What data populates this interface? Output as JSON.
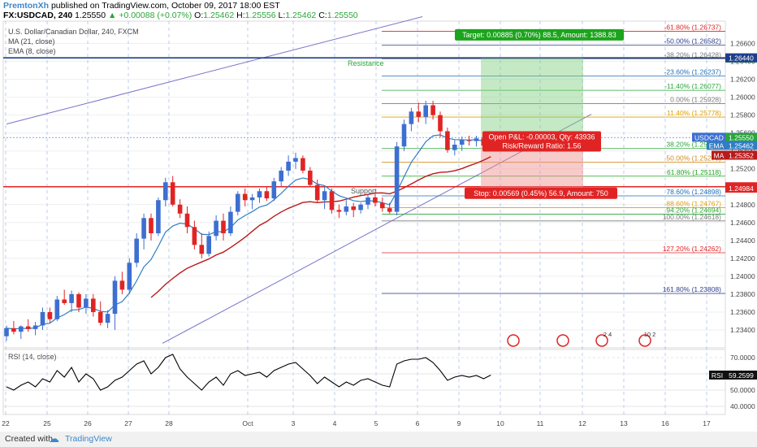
{
  "header": {
    "author": "PremtonXh",
    "published": "published on TradingView.com, October 09, 2017 18:00 EST",
    "symbol_interval": "FX:USDCAD, 240",
    "last": "1.25550",
    "change": "+0.00088 (+0.07%)",
    "ohlc": {
      "o_label": "O:",
      "o": "1.25462",
      "h_label": "H:",
      "h": "1.25556",
      "l_label": "L:",
      "l": "1.25462",
      "c_label": "C:",
      "c": "1.25550"
    }
  },
  "legend": [
    "U.S. Dollar/Canadian Dollar, 240, FXCM",
    "MA (21, close)",
    "EMA (8, close)"
  ],
  "footer": {
    "created_with": "Created with",
    "brand": "TradingView"
  },
  "colors": {
    "bull": "#3d6fd1",
    "bear": "#e02424",
    "ma": "#b91919",
    "ema": "#2f7ec4",
    "channel": "#7774c8",
    "resistance": "#1f3f8c",
    "support": "#e02424",
    "target": "#1ca41c",
    "stop": "#e02424",
    "rsi": "#000000"
  },
  "chart_data": {
    "type": "candlestick",
    "ylim": [
      1.232,
      1.2685
    ],
    "price_ticks": [
      "1.26600",
      "1.26400",
      "1.26200",
      "1.26000",
      "1.25800",
      "1.25600",
      "1.25400",
      "1.25200",
      "1.25000",
      "1.24800",
      "1.24600",
      "1.24400",
      "1.24200",
      "1.24000",
      "1.23800",
      "1.23600",
      "1.23400"
    ],
    "x_axis": [
      "22",
      "25",
      "26",
      "27",
      "28",
      "Oct",
      "3",
      "4",
      "5",
      "6",
      "9",
      "10",
      "11",
      "12",
      "13",
      "16",
      "17"
    ],
    "ohlc": [
      [
        1.2333,
        1.2345,
        1.2328,
        1.2342
      ],
      [
        1.2342,
        1.235,
        1.2335,
        1.2338
      ],
      [
        1.2338,
        1.2345,
        1.233,
        1.2344
      ],
      [
        1.2344,
        1.2352,
        1.2338,
        1.2341
      ],
      [
        1.2341,
        1.2349,
        1.2334,
        1.2345
      ],
      [
        1.2345,
        1.2365,
        1.234,
        1.236
      ],
      [
        1.236,
        1.2365,
        1.2348,
        1.2352
      ],
      [
        1.2352,
        1.2378,
        1.235,
        1.2374
      ],
      [
        1.2374,
        1.2385,
        1.2368,
        1.237
      ],
      [
        1.237,
        1.2384,
        1.236,
        1.238
      ],
      [
        1.238,
        1.2382,
        1.236,
        1.2365
      ],
      [
        1.2365,
        1.238,
        1.2358,
        1.2375
      ],
      [
        1.2375,
        1.238,
        1.2355,
        1.236
      ],
      [
        1.236,
        1.2372,
        1.2345,
        1.2348
      ],
      [
        1.2348,
        1.2362,
        1.2342,
        1.2358
      ],
      [
        1.2358,
        1.24,
        1.234,
        1.2395
      ],
      [
        1.2395,
        1.2405,
        1.238,
        1.2385
      ],
      [
        1.2385,
        1.242,
        1.238,
        1.2415
      ],
      [
        1.2415,
        1.2448,
        1.241,
        1.2442
      ],
      [
        1.2442,
        1.247,
        1.243,
        1.2465
      ],
      [
        1.2465,
        1.247,
        1.244,
        1.2448
      ],
      [
        1.2448,
        1.2488,
        1.2445,
        1.2485
      ],
      [
        1.2485,
        1.251,
        1.2478,
        1.2505
      ],
      [
        1.2505,
        1.2512,
        1.2478,
        1.248
      ],
      [
        1.248,
        1.2486,
        1.2465,
        1.247
      ],
      [
        1.247,
        1.2478,
        1.2448,
        1.2455
      ],
      [
        1.2455,
        1.2462,
        1.243,
        1.2435
      ],
      [
        1.2435,
        1.2448,
        1.242,
        1.2425
      ],
      [
        1.2425,
        1.245,
        1.2422,
        1.2445
      ],
      [
        1.2445,
        1.2468,
        1.244,
        1.2462
      ],
      [
        1.2462,
        1.247,
        1.244,
        1.2448
      ],
      [
        1.2448,
        1.2478,
        1.2445,
        1.2472
      ],
      [
        1.2472,
        1.2495,
        1.2468,
        1.2492
      ],
      [
        1.2492,
        1.2498,
        1.2478,
        1.2485
      ],
      [
        1.2485,
        1.2492,
        1.2475,
        1.2488
      ],
      [
        1.2488,
        1.2498,
        1.2482,
        1.2495
      ],
      [
        1.2495,
        1.25,
        1.2484,
        1.2487
      ],
      [
        1.2487,
        1.251,
        1.2484,
        1.2506
      ],
      [
        1.2506,
        1.2522,
        1.25,
        1.2518
      ],
      [
        1.2518,
        1.2535,
        1.2512,
        1.2528
      ],
      [
        1.2528,
        1.2538,
        1.252,
        1.2532
      ],
      [
        1.2532,
        1.2535,
        1.2515,
        1.2518
      ],
      [
        1.2518,
        1.2522,
        1.25,
        1.2502
      ],
      [
        1.2502,
        1.2508,
        1.2482,
        1.2485
      ],
      [
        1.2485,
        1.25,
        1.2475,
        1.2495
      ],
      [
        1.2495,
        1.2498,
        1.247,
        1.2474
      ],
      [
        1.2474,
        1.248,
        1.2465,
        1.2472
      ],
      [
        1.2472,
        1.2485,
        1.2468,
        1.2478
      ],
      [
        1.2478,
        1.2482,
        1.2466,
        1.2474
      ],
      [
        1.2474,
        1.2482,
        1.247,
        1.248
      ],
      [
        1.248,
        1.2492,
        1.2475,
        1.2488
      ],
      [
        1.2488,
        1.2492,
        1.2478,
        1.2482
      ],
      [
        1.2482,
        1.2488,
        1.2472,
        1.2476
      ],
      [
        1.2476,
        1.2482,
        1.247,
        1.2472
      ],
      [
        1.2472,
        1.255,
        1.2468,
        1.2545
      ],
      [
        1.2545,
        1.2575,
        1.254,
        1.257
      ],
      [
        1.257,
        1.2588,
        1.2562,
        1.2584
      ],
      [
        1.2584,
        1.2594,
        1.2572,
        1.2578
      ],
      [
        1.2578,
        1.2596,
        1.257,
        1.2591
      ],
      [
        1.2591,
        1.2596,
        1.2575,
        1.258
      ],
      [
        1.258,
        1.2584,
        1.2555,
        1.2562
      ],
      [
        1.2562,
        1.2566,
        1.2538,
        1.2541
      ],
      [
        1.2541,
        1.2552,
        1.2535,
        1.2547
      ],
      [
        1.2547,
        1.2556,
        1.254,
        1.2552
      ],
      [
        1.2552,
        1.2557,
        1.2546,
        1.2551
      ],
      [
        1.2551,
        1.2557,
        1.2545,
        1.2554
      ],
      [
        1.2554,
        1.2558,
        1.2544,
        1.2546
      ],
      [
        1.25462,
        1.25556,
        1.25462,
        1.2555
      ]
    ],
    "ma21_last": 1.25352,
    "ema8_last": 1.25462,
    "rsi": {
      "label": "RSI (14, close)",
      "last": "59.2599",
      "ticks": [
        "70.0000",
        "60.0000",
        "50.0000",
        "40.0000"
      ],
      "ylim": [
        35,
        75
      ],
      "values": [
        52,
        50,
        53,
        55,
        52,
        57,
        55,
        62,
        58,
        64,
        55,
        60,
        57,
        50,
        52,
        56,
        58,
        62,
        66,
        68,
        60,
        64,
        70,
        72,
        63,
        58,
        54,
        50,
        55,
        58,
        53,
        60,
        62,
        59,
        60,
        61,
        58,
        62,
        64,
        66,
        67,
        63,
        59,
        54,
        58,
        55,
        52,
        55,
        53,
        56,
        57,
        55,
        53,
        52,
        66,
        68,
        69,
        69,
        70,
        67,
        62,
        56,
        58,
        59,
        58,
        59,
        57,
        59.26
      ]
    },
    "fib_levels": [
      {
        "label": "-61.80%",
        "value": "1.26737",
        "price": 1.26737,
        "color": "#e02424"
      },
      {
        "label": "-50.00%",
        "value": "1.26582",
        "price": 1.26582,
        "color": "#2e3f8f"
      },
      {
        "label": "-38.20%",
        "value": "1.26428",
        "price": 1.26428,
        "color": "#7b7b7b"
      },
      {
        "label": "-23.60%",
        "value": "1.26237",
        "price": 1.26237,
        "color": "#1f6fb8"
      },
      {
        "label": "-11.40%",
        "value": "1.26077",
        "price": 1.26077,
        "color": "#2aa53a"
      },
      {
        "label": "0.00%",
        "value": "1.25928",
        "price": 1.25928,
        "color": "#7b7b7b"
      },
      {
        "label": "11.40%",
        "value": "1.25778",
        "price": 1.25778,
        "color": "#e0a000"
      },
      {
        "label": "38.20%",
        "value": "1.25427",
        "price": 1.25427,
        "color": "#2aa53a"
      },
      {
        "label": "50.00%",
        "value": "1.25273",
        "price": 1.25273,
        "color": "#d08a1e"
      },
      {
        "label": "61.80%",
        "value": "1.25118",
        "price": 1.25118,
        "color": "#1ca41c"
      },
      {
        "label": "78.60%",
        "value": "1.24898",
        "price": 1.24898,
        "color": "#1f6fb8"
      },
      {
        "label": "88.60%",
        "value": "1.24767",
        "price": 1.24767,
        "color": "#e0a000"
      },
      {
        "label": "94.20%",
        "value": "1.24694",
        "price": 1.24694,
        "color": "#2aa53a"
      },
      {
        "label": "100.00%",
        "value": "1.24618",
        "price": 1.24618,
        "color": "#7b7b7b"
      },
      {
        "label": "127.20%",
        "value": "1.24262",
        "price": 1.24262,
        "color": "#e02424"
      },
      {
        "label": "161.80%",
        "value": "1.23808",
        "price": 1.23808,
        "color": "#2e3f8f"
      }
    ],
    "resistance": {
      "label": "Resistance",
      "price": 1.2644
    },
    "support": {
      "label": "Support",
      "price": 1.25
    },
    "position": {
      "entry": 1.25553,
      "target": 1.26438,
      "stop": 1.24984,
      "target_text": "Target: 0.00885 (0.70%) 88.5, Amount: 1388.83",
      "pnl_text": "Open P&L: -0.00003, Qty: 43936",
      "rr_text": "Risk/Reward Ratio: 1.56",
      "stop_text": "Stop: 0.00569 (0.45%) 56.9, Amount: 750"
    },
    "price_tags": [
      {
        "text": "1.26438",
        "price": 1.26438,
        "bg": "#1ca41c"
      },
      {
        "text": "1.26440",
        "price": 1.2644,
        "bg": "#1f3f8c"
      },
      {
        "text": "USDCAD",
        "price": 1.25553,
        "bg": "#3d6fd1",
        "side": "left"
      },
      {
        "text": "1.25553",
        "price": 1.25553,
        "bg": "#3d6fd1"
      },
      {
        "text": "EMA",
        "price": 1.25462,
        "bg": "#2f7ec4",
        "side": "left"
      },
      {
        "text": "1.25550",
        "price": 1.2555,
        "bg": "#2aa53a"
      },
      {
        "text": "1.25462",
        "price": 1.25462,
        "bg": "#2f7ec4"
      },
      {
        "text": "MA",
        "price": 1.25352,
        "bg": "#b91919",
        "side": "left"
      },
      {
        "text": "1.25352",
        "price": 1.25352,
        "bg": "#b91919"
      },
      {
        "text": "1.25000",
        "price": 1.25,
        "bg": "#e02424"
      },
      {
        "text": "1.24984",
        "price": 1.24984,
        "bg": "#e02424"
      }
    ],
    "events": [
      "ca-flag",
      "us-flag",
      "us-events-2-4",
      "us-events-10-2"
    ],
    "event_counts": {
      "e3": "2  4",
      "e4": "10  2"
    }
  }
}
